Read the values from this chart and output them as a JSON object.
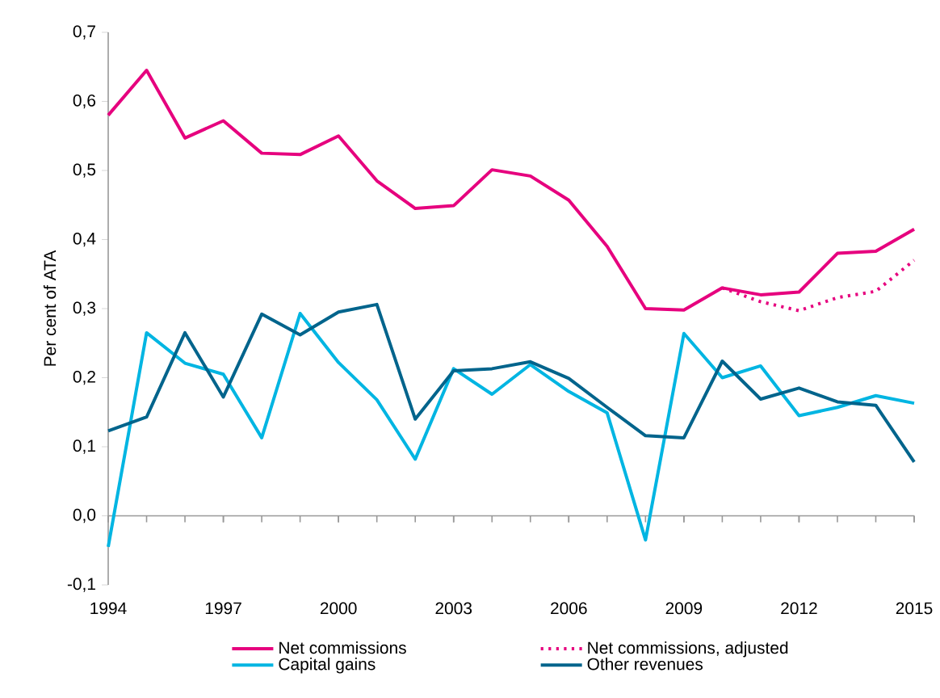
{
  "chart_data": {
    "type": "line",
    "ylabel": "Per cent of ATA",
    "x": [
      1994,
      1995,
      1996,
      1997,
      1998,
      1999,
      2000,
      2001,
      2002,
      2003,
      2004,
      2005,
      2006,
      2007,
      2008,
      2009,
      2010,
      2011,
      2012,
      2013,
      2014,
      2015
    ],
    "xlim": [
      1994,
      2015
    ],
    "xticks": [
      1994,
      1997,
      2000,
      2003,
      2006,
      2009,
      2012,
      2015
    ],
    "ylim": [
      -0.1,
      0.7
    ],
    "yticks": [
      {
        "value": -0.1,
        "label": "-0,1"
      },
      {
        "value": 0,
        "label": "0,0"
      },
      {
        "value": 0.1,
        "label": "0,1"
      },
      {
        "value": 0.2,
        "label": "0,2"
      },
      {
        "value": 0.3,
        "label": "0,3"
      },
      {
        "value": 0.4,
        "label": "0,4"
      },
      {
        "value": 0.5,
        "label": "0,5"
      },
      {
        "value": 0.6,
        "label": "0,6"
      },
      {
        "value": 0.7,
        "label": "0,7"
      }
    ],
    "legend": "bottom",
    "marker": "none",
    "series": [
      {
        "name": "Net commissions",
        "color": "#e6007e",
        "values": [
          0.58,
          0.645,
          0.547,
          0.572,
          0.525,
          0.523,
          0.55,
          0.485,
          0.445,
          0.449,
          0.501,
          0.492,
          0.457,
          0.39,
          0.3,
          0.298,
          0.33,
          0.32,
          0.324,
          0.38,
          0.383,
          0.415
        ]
      },
      {
        "name": "Net commissions, adjusted",
        "color": "#e6007e",
        "line_style": "dotted",
        "x": [
          2010,
          2011,
          2012,
          2013,
          2014,
          2015
        ],
        "values": [
          0.33,
          0.31,
          0.297,
          0.316,
          0.325,
          0.37
        ]
      },
      {
        "name": "Capital gains",
        "color": "#00b5e2",
        "values": [
          -0.045,
          0.265,
          0.221,
          0.205,
          0.113,
          0.293,
          0.222,
          0.168,
          0.082,
          0.213,
          0.176,
          0.219,
          0.18,
          0.149,
          -0.035,
          0.264,
          0.2,
          0.217,
          0.145,
          0.157,
          0.174,
          0.163
        ]
      },
      {
        "name": "Other revenues",
        "color": "#00648c",
        "values": [
          0.123,
          0.143,
          0.265,
          0.172,
          0.292,
          0.262,
          0.295,
          0.306,
          0.14,
          0.21,
          0.213,
          0.223,
          0.199,
          0.157,
          0.116,
          0.113,
          0.224,
          0.169,
          0.185,
          0.165,
          0.16,
          0.078
        ]
      }
    ]
  }
}
